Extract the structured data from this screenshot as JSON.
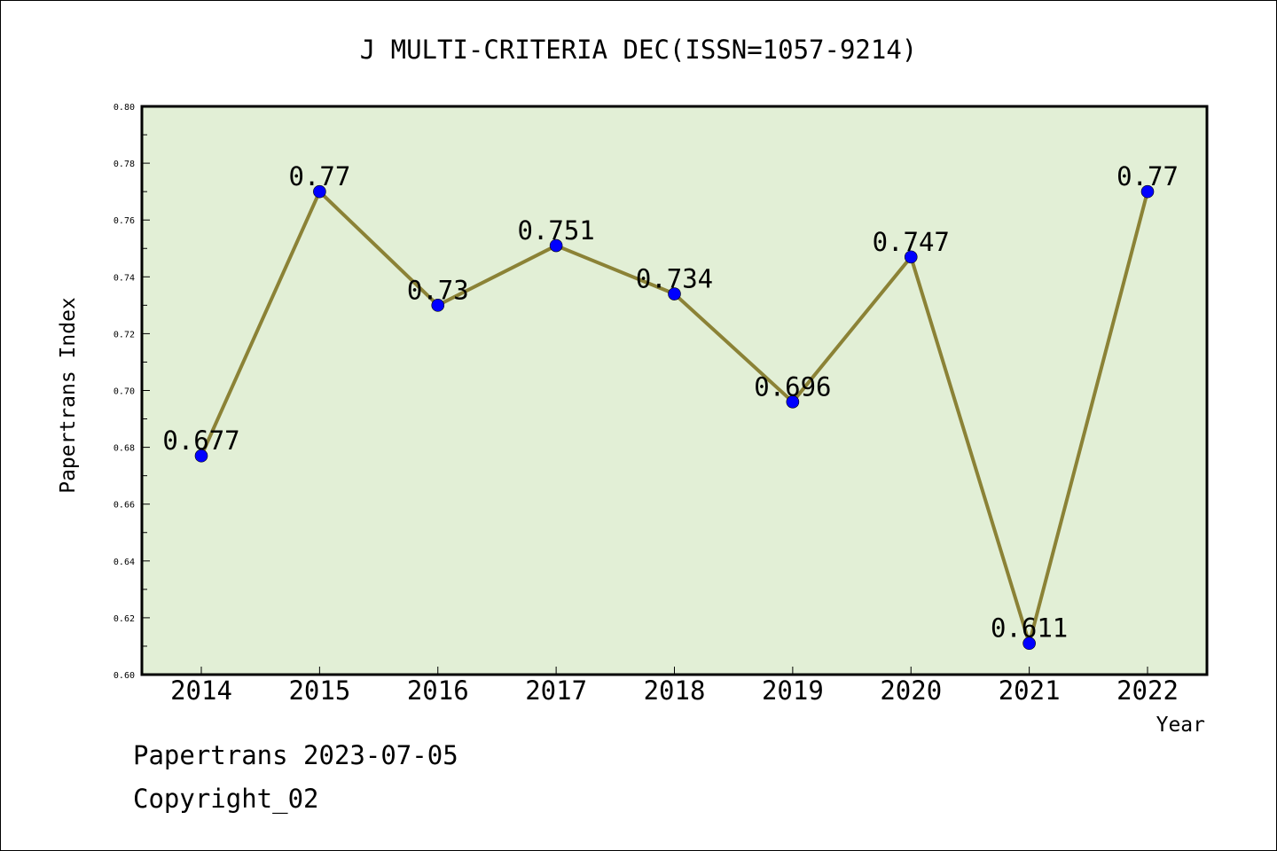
{
  "chart_data": {
    "type": "line",
    "title": "J MULTI-CRITERIA DEC(ISSN=1057-9214)",
    "xlabel": "Year",
    "ylabel": "Papertrans Index",
    "categories": [
      "2014",
      "2015",
      "2016",
      "2017",
      "2018",
      "2019",
      "2020",
      "2021",
      "2022"
    ],
    "values": [
      0.677,
      0.77,
      0.73,
      0.751,
      0.734,
      0.696,
      0.747,
      0.611,
      0.77
    ],
    "data_labels": [
      "0.677",
      "0.77",
      "0.73",
      "0.751",
      "0.734",
      "0.696",
      "0.747",
      "0.611",
      "0.77"
    ],
    "ylim": [
      0.6,
      0.8
    ],
    "yticks": [
      "0.60",
      "0.62",
      "0.64",
      "0.66",
      "0.68",
      "0.70",
      "0.72",
      "0.74",
      "0.76",
      "0.78",
      "0.80"
    ],
    "grid": false,
    "colors": {
      "plot_background": "#e2efd6",
      "line": "#8b8236",
      "marker": "#0000ff"
    }
  },
  "footer": {
    "date": "Papertrans 2023-07-05",
    "copyright": "Copyright_02"
  }
}
